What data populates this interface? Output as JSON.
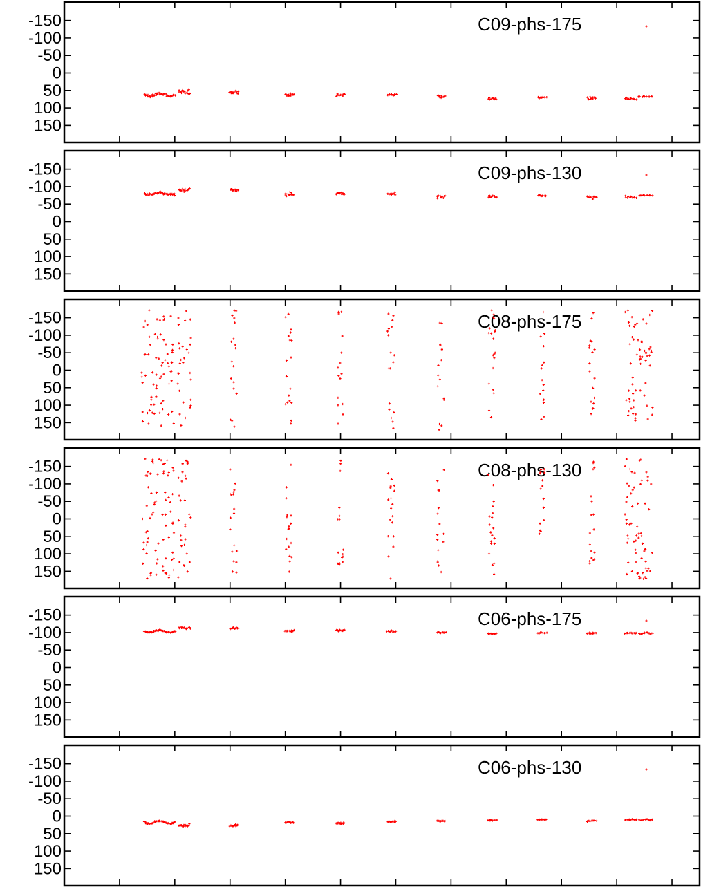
{
  "chart_data": [
    {
      "type": "scatter",
      "legend": "C09-phs-175",
      "ylim": [
        175,
        -175
      ],
      "yticks": [
        "-150",
        "-100",
        "-50",
        "0",
        "50",
        "100",
        "150"
      ],
      "clusters": [
        {
          "x_range": [
            8.9,
            10.0
          ],
          "center": 63,
          "spread": 4,
          "wave": 4,
          "n": 40
        },
        {
          "x_range": [
            10.15,
            10.55
          ],
          "center": 55,
          "spread": 6,
          "wave": 0,
          "n": 14
        },
        {
          "x_range": [
            12.0,
            12.3
          ],
          "center": 55,
          "spread": 5,
          "wave": 0,
          "n": 12
        },
        {
          "x_range": [
            14.0,
            14.3
          ],
          "center": 63,
          "spread": 4,
          "wave": 0,
          "n": 12
        },
        {
          "x_range": [
            15.85,
            16.15
          ],
          "center": 63,
          "spread": 4,
          "wave": 0,
          "n": 12
        },
        {
          "x_range": [
            17.7,
            18.0
          ],
          "center": 63,
          "spread": 3,
          "wave": 0,
          "n": 10
        },
        {
          "x_range": [
            19.5,
            19.8
          ],
          "center": 67,
          "spread": 4,
          "wave": 0,
          "n": 10
        },
        {
          "x_range": [
            21.35,
            21.65
          ],
          "center": 73,
          "spread": 3,
          "wave": 0,
          "n": 10
        },
        {
          "x_range": [
            23.15,
            23.45
          ],
          "center": 70,
          "spread": 3,
          "wave": 0,
          "n": 10
        },
        {
          "x_range": [
            24.95,
            25.25
          ],
          "center": 72,
          "spread": 3,
          "wave": 0,
          "n": 10
        },
        {
          "x_range": [
            26.3,
            26.7
          ],
          "center": 74,
          "spread": 3,
          "wave": 0,
          "n": 10
        },
        {
          "x_range": [
            26.8,
            27.3
          ],
          "center": 68,
          "spread": 1,
          "wave": 0,
          "n": 10
        }
      ],
      "legend_marker": true
    },
    {
      "type": "scatter",
      "legend": "C09-phs-130",
      "ylim": [
        175,
        -175
      ],
      "yticks": [
        "-150",
        "-100",
        "-50",
        "0",
        "50",
        "100",
        "150"
      ],
      "clusters": [
        {
          "x_range": [
            8.9,
            10.0
          ],
          "center": -80,
          "spread": 3,
          "wave": 3,
          "n": 40
        },
        {
          "x_range": [
            10.15,
            10.55
          ],
          "center": -90,
          "spread": 5,
          "wave": 0,
          "n": 14
        },
        {
          "x_range": [
            12.0,
            12.3
          ],
          "center": -90,
          "spread": 4,
          "wave": 0,
          "n": 12
        },
        {
          "x_range": [
            14.0,
            14.3
          ],
          "center": -78,
          "spread": 4,
          "wave": 0,
          "n": 12
        },
        {
          "x_range": [
            15.85,
            16.15
          ],
          "center": -80,
          "spread": 4,
          "wave": 0,
          "n": 12
        },
        {
          "x_range": [
            17.7,
            18.0
          ],
          "center": -80,
          "spread": 3,
          "wave": 0,
          "n": 10
        },
        {
          "x_range": [
            19.5,
            19.8
          ],
          "center": -72,
          "spread": 4,
          "wave": 0,
          "n": 10
        },
        {
          "x_range": [
            21.35,
            21.65
          ],
          "center": -72,
          "spread": 5,
          "wave": 0,
          "n": 12
        },
        {
          "x_range": [
            23.15,
            23.45
          ],
          "center": -75,
          "spread": 3,
          "wave": 0,
          "n": 10
        },
        {
          "x_range": [
            24.95,
            25.25
          ],
          "center": -70,
          "spread": 4,
          "wave": 0,
          "n": 10
        },
        {
          "x_range": [
            26.3,
            26.7
          ],
          "center": -70,
          "spread": 3,
          "wave": 0,
          "n": 10
        },
        {
          "x_range": [
            26.8,
            27.3
          ],
          "center": -75,
          "spread": 1,
          "wave": 0,
          "n": 10
        }
      ],
      "legend_marker": true
    },
    {
      "type": "scatter",
      "legend": "C08-phs-175",
      "ylim": [
        175,
        -175
      ],
      "yticks": [
        "-150",
        "-100",
        "-50",
        "0",
        "50",
        "100",
        "150"
      ],
      "scattered_columns": [
        {
          "x_range": [
            8.8,
            10.0
          ],
          "n": 70
        },
        {
          "x_range": [
            10.1,
            10.6
          ],
          "n": 30
        },
        {
          "x_range": [
            12.0,
            12.25
          ],
          "n": 18
        },
        {
          "x_range": [
            14.0,
            14.25
          ],
          "n": 18
        },
        {
          "x_range": [
            15.9,
            16.1
          ],
          "n": 16
        },
        {
          "x_range": [
            17.7,
            17.95
          ],
          "n": 18
        },
        {
          "x_range": [
            19.5,
            19.75
          ],
          "n": 16
        },
        {
          "x_range": [
            21.35,
            21.6
          ],
          "n": 20
        },
        {
          "x_range": [
            23.2,
            23.4
          ],
          "n": 16
        },
        {
          "x_range": [
            25.0,
            25.2
          ],
          "n": 18
        },
        {
          "x_range": [
            26.3,
            27.3
          ],
          "n": 60
        }
      ],
      "legend_marker": true
    },
    {
      "type": "scatter",
      "legend": "C08-phs-130",
      "ylim": [
        175,
        -175
      ],
      "yticks": [
        "-150",
        "-100",
        "-50",
        "0",
        "50",
        "100",
        "150"
      ],
      "scattered_columns": [
        {
          "x_range": [
            8.8,
            10.0
          ],
          "n": 75
        },
        {
          "x_range": [
            10.1,
            10.6
          ],
          "n": 30
        },
        {
          "x_range": [
            12.0,
            12.25
          ],
          "n": 18
        },
        {
          "x_range": [
            14.0,
            14.25
          ],
          "n": 18
        },
        {
          "x_range": [
            15.9,
            16.1
          ],
          "n": 16
        },
        {
          "x_range": [
            17.7,
            17.95
          ],
          "n": 18
        },
        {
          "x_range": [
            19.5,
            19.75
          ],
          "n": 16
        },
        {
          "x_range": [
            21.35,
            21.6
          ],
          "n": 20
        },
        {
          "x_range": [
            23.2,
            23.4
          ],
          "n": 16
        },
        {
          "x_range": [
            25.0,
            25.2
          ],
          "n": 18
        },
        {
          "x_range": [
            26.3,
            27.3
          ],
          "n": 65
        }
      ],
      "legend_marker": true
    },
    {
      "type": "scatter",
      "legend": "C06-phs-175",
      "ylim": [
        175,
        -175
      ],
      "yticks": [
        "-150",
        "-100",
        "-50",
        "0",
        "50",
        "100",
        "150"
      ],
      "clusters": [
        {
          "x_range": [
            8.9,
            10.0
          ],
          "center": -104,
          "spread": 2,
          "wave": 3,
          "n": 40
        },
        {
          "x_range": [
            10.15,
            10.55
          ],
          "center": -114,
          "spread": 3,
          "wave": 0,
          "n": 14
        },
        {
          "x_range": [
            12.0,
            12.3
          ],
          "center": -112,
          "spread": 3,
          "wave": 0,
          "n": 12
        },
        {
          "x_range": [
            14.0,
            14.3
          ],
          "center": -104,
          "spread": 3,
          "wave": 0,
          "n": 12
        },
        {
          "x_range": [
            15.85,
            16.15
          ],
          "center": -106,
          "spread": 3,
          "wave": 0,
          "n": 12
        },
        {
          "x_range": [
            17.7,
            18.0
          ],
          "center": -104,
          "spread": 3,
          "wave": 0,
          "n": 10
        },
        {
          "x_range": [
            19.5,
            19.8
          ],
          "center": -100,
          "spread": 2,
          "wave": 0,
          "n": 10
        },
        {
          "x_range": [
            21.35,
            21.65
          ],
          "center": -96,
          "spread": 2,
          "wave": 0,
          "n": 10
        },
        {
          "x_range": [
            23.15,
            23.45
          ],
          "center": -99,
          "spread": 2,
          "wave": 0,
          "n": 10
        },
        {
          "x_range": [
            24.95,
            25.25
          ],
          "center": -98,
          "spread": 2,
          "wave": 0,
          "n": 10
        },
        {
          "x_range": [
            26.3,
            26.7
          ],
          "center": -98,
          "spread": 2,
          "wave": 0,
          "n": 10
        },
        {
          "x_range": [
            26.8,
            27.3
          ],
          "center": -98,
          "spread": 2,
          "wave": 2,
          "n": 12
        }
      ],
      "legend_marker": true
    },
    {
      "type": "scatter",
      "legend": "C06-phs-130",
      "ylim": [
        175,
        -175
      ],
      "yticks": [
        "-150",
        "-100",
        "-50",
        "0",
        "50",
        "100",
        "150"
      ],
      "clusters": [
        {
          "x_range": [
            8.9,
            10.0
          ],
          "center": 17,
          "spread": 2,
          "wave": 4,
          "n": 40
        },
        {
          "x_range": [
            10.15,
            10.55
          ],
          "center": 27,
          "spread": 4,
          "wave": 0,
          "n": 14
        },
        {
          "x_range": [
            12.0,
            12.3
          ],
          "center": 27,
          "spread": 3,
          "wave": 0,
          "n": 12
        },
        {
          "x_range": [
            14.0,
            14.3
          ],
          "center": 18,
          "spread": 2,
          "wave": 0,
          "n": 12
        },
        {
          "x_range": [
            15.85,
            16.15
          ],
          "center": 20,
          "spread": 3,
          "wave": 0,
          "n": 12
        },
        {
          "x_range": [
            17.7,
            18.0
          ],
          "center": 16,
          "spread": 2,
          "wave": 0,
          "n": 10
        },
        {
          "x_range": [
            19.5,
            19.8
          ],
          "center": 14,
          "spread": 2,
          "wave": 0,
          "n": 10
        },
        {
          "x_range": [
            21.35,
            21.65
          ],
          "center": 11,
          "spread": 2,
          "wave": 0,
          "n": 10
        },
        {
          "x_range": [
            23.15,
            23.45
          ],
          "center": 10,
          "spread": 1,
          "wave": 0,
          "n": 10
        },
        {
          "x_range": [
            24.95,
            25.25
          ],
          "center": 13,
          "spread": 3,
          "wave": 0,
          "n": 10
        },
        {
          "x_range": [
            26.3,
            26.7
          ],
          "center": 10,
          "spread": 2,
          "wave": 0,
          "n": 10
        },
        {
          "x_range": [
            26.8,
            27.3
          ],
          "center": 10,
          "spread": 1,
          "wave": 1,
          "n": 10
        }
      ],
      "legend_marker": true
    }
  ],
  "style": {
    "point_color": "#ff0000",
    "frame_color": "#000000",
    "background": "#ffffff"
  },
  "x_axis": {
    "range": [
      6.0,
      29.0
    ],
    "major_ticks": [
      6,
      8,
      10,
      12,
      14,
      16,
      18,
      20,
      22,
      24,
      26,
      28
    ],
    "tick_labels_shown": false
  }
}
